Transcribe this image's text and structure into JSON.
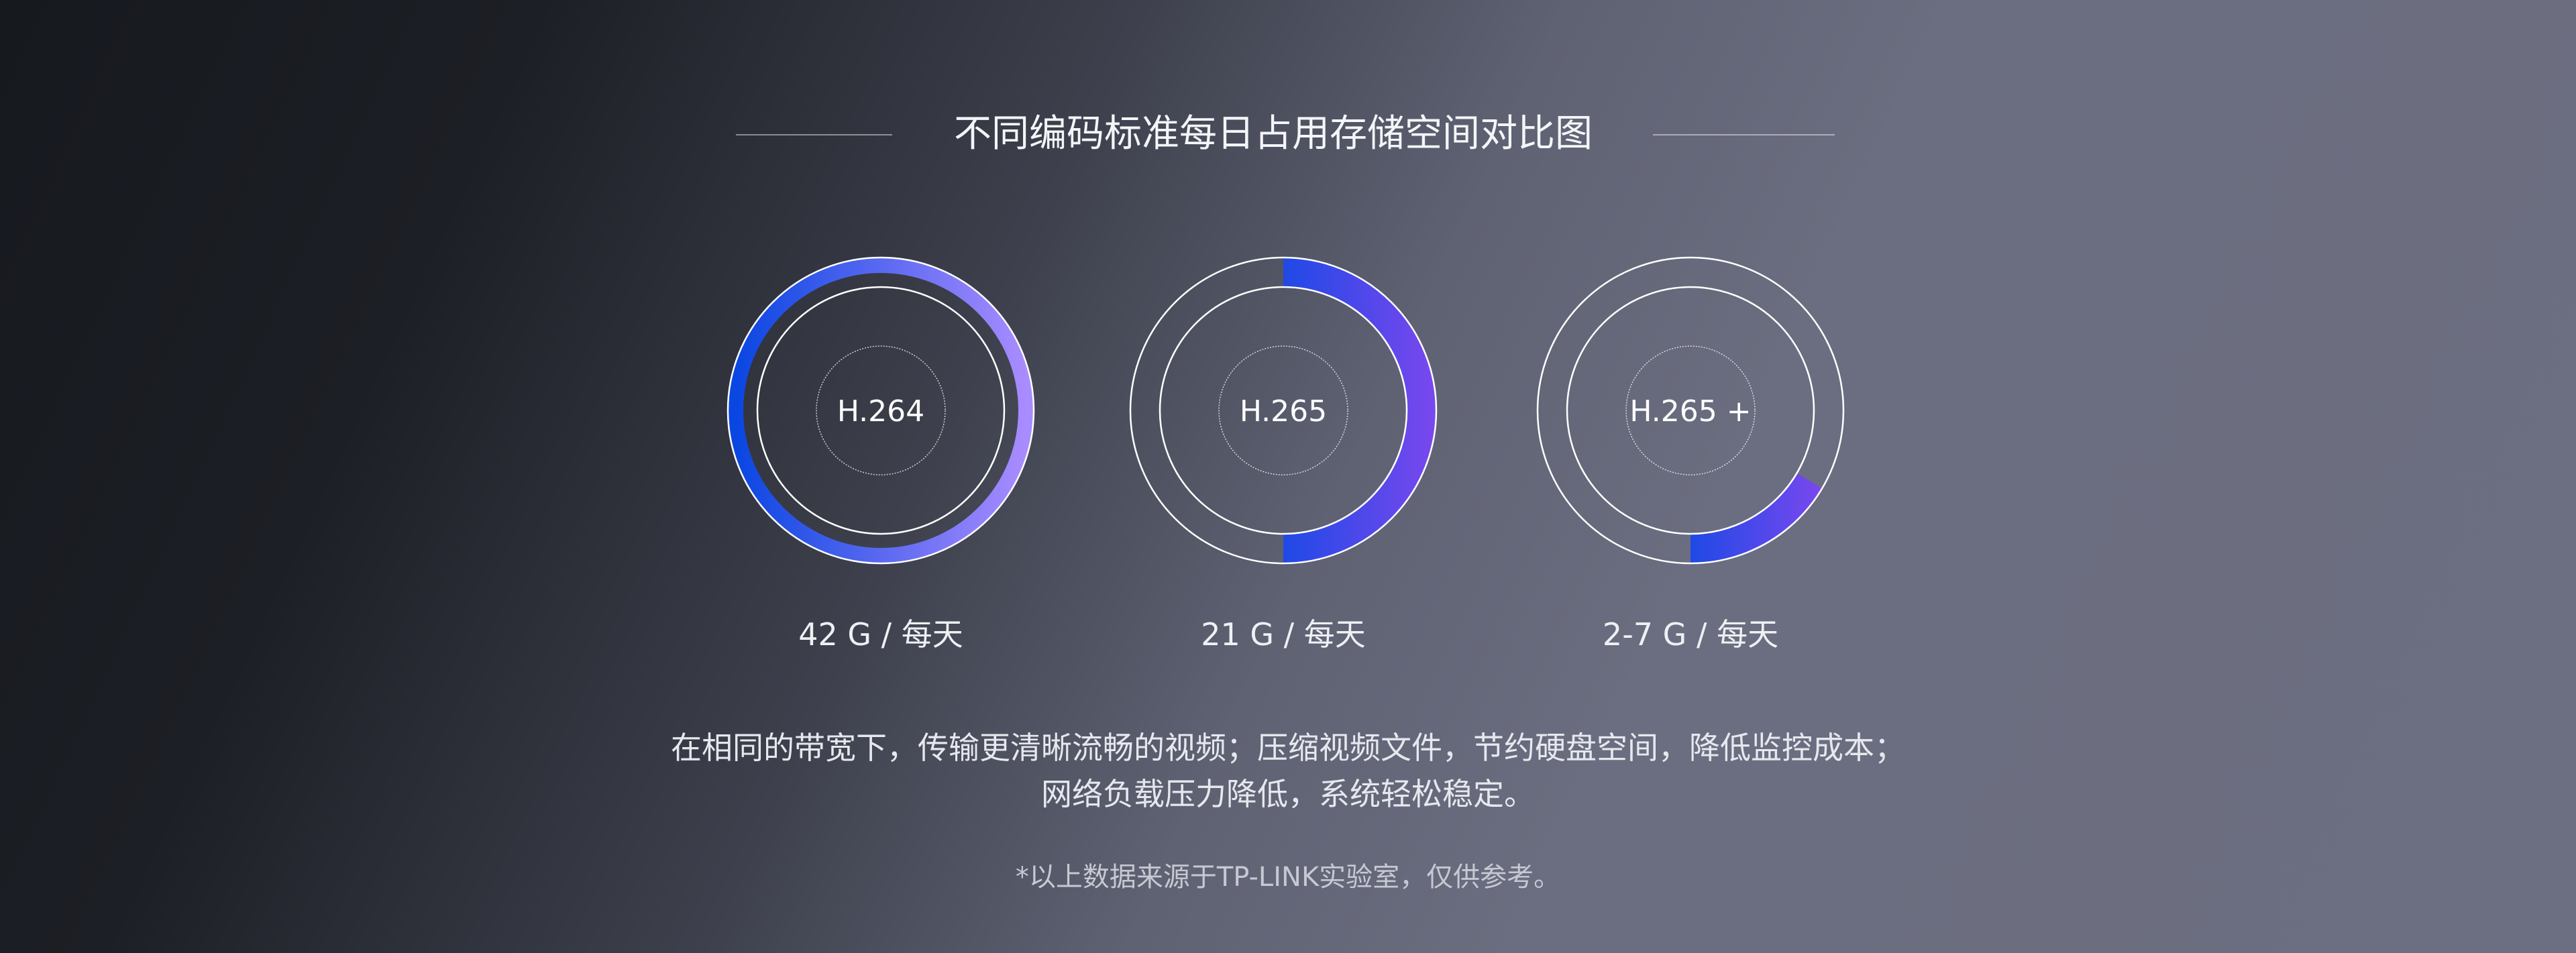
{
  "title": "不同编码标准每日占用存储空间对比图",
  "colors": {
    "arc_start": "#1f49e6",
    "arc_end": "#7a48ee",
    "ring_h264_end": "#a98cff"
  },
  "chart_data": {
    "type": "pie",
    "title": "不同编码标准每日占用存储空间对比图",
    "series": [
      {
        "name": "H.264",
        "label": "42 G / 每天",
        "fraction": 1.0
      },
      {
        "name": "H.265",
        "label": "21 G / 每天",
        "fraction": 0.5
      },
      {
        "name": "H.265 +",
        "label": "2-7 G / 每天",
        "fraction": 0.165
      }
    ]
  },
  "description": [
    "在相同的带宽下，传输更清晰流畅的视频；压缩视频文件，节约硬盘空间，降低监控成本；",
    "网络负载压力降低，系统轻松稳定。"
  ],
  "footnote": "*以上数据来源于TP-LINK实验室，仅供参考。"
}
